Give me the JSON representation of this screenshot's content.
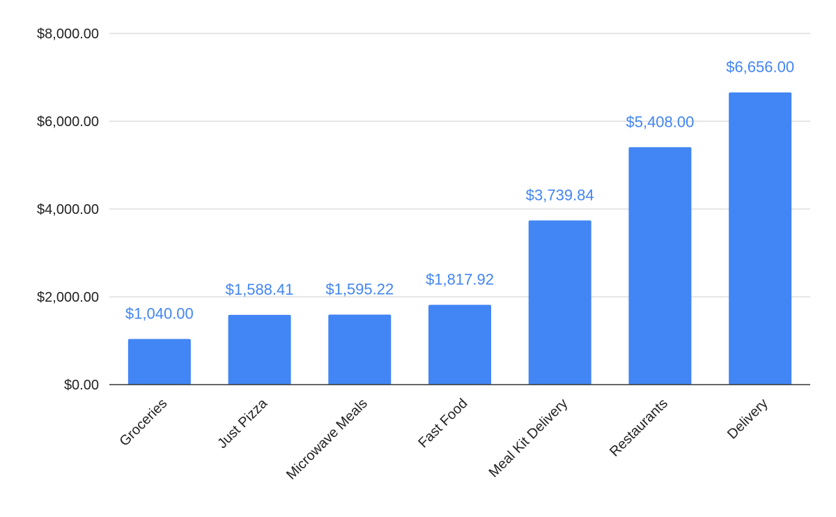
{
  "chart_data": {
    "type": "bar",
    "categories": [
      "Groceries",
      "Just Pizza",
      "Microwave Meals",
      "Fast Food",
      "Meal Kit Delivery",
      "Restaurants",
      "Delivery"
    ],
    "values": [
      1040.0,
      1588.41,
      1595.22,
      1817.92,
      3739.84,
      5408.0,
      6656.0
    ],
    "data_labels": [
      "$1,040.00",
      "$1,588.41",
      "$1,595.22",
      "$1,817.92",
      "$3,739.84",
      "$5,408.00",
      "$6,656.00"
    ],
    "y_ticks": [
      0,
      2000,
      4000,
      6000,
      8000
    ],
    "y_tick_labels": [
      "$0.00",
      "$2,000.00",
      "$4,000.00",
      "$6,000.00",
      "$8,000.00"
    ],
    "ylim": [
      0,
      8000
    ],
    "title": "",
    "xlabel": "",
    "ylabel": "",
    "grid": true,
    "legend": "none",
    "bar_color": "#4285f4",
    "label_color": "#4285f4"
  }
}
